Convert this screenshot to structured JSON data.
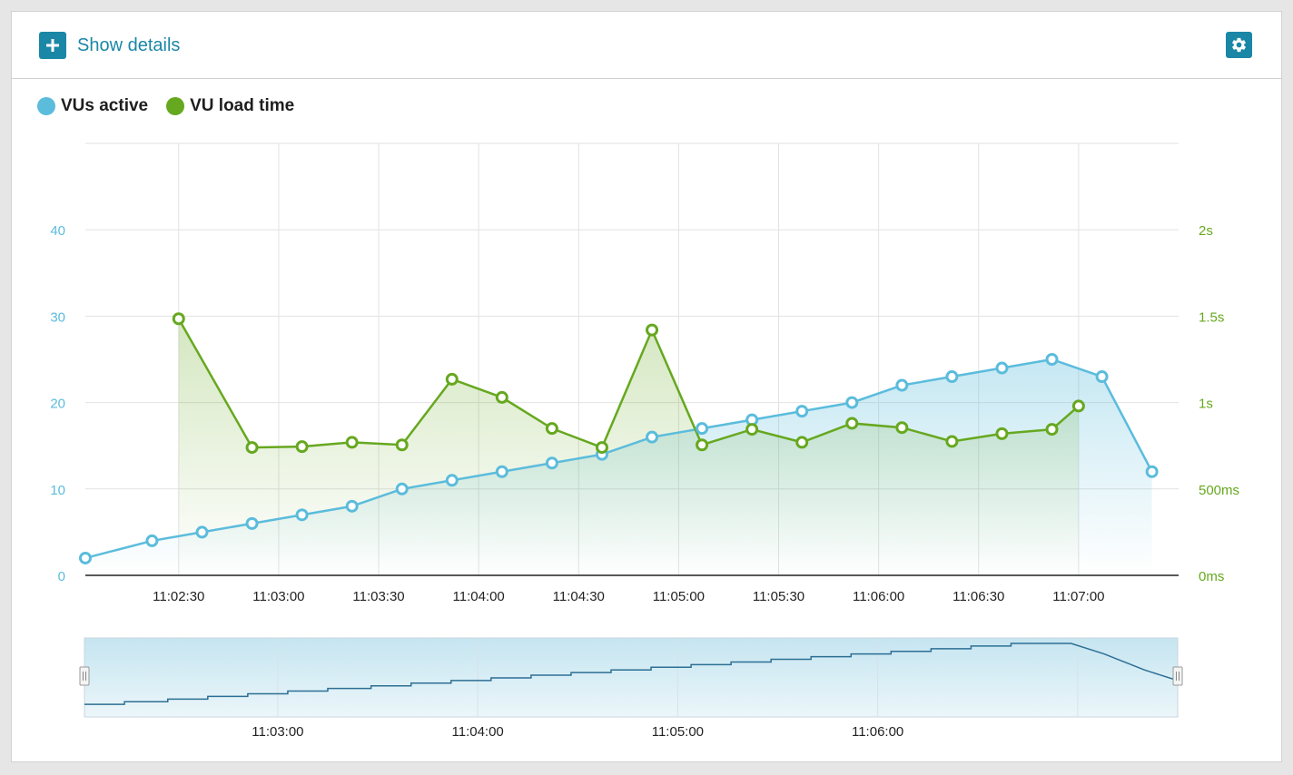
{
  "header": {
    "show_details_label": "Show details",
    "plus_icon": "plus-icon",
    "settings_icon": "gear-icon"
  },
  "colors": {
    "accent": "#1a87a6",
    "vus": "#5bbcdc",
    "load": "#66a81f",
    "grid": "#e2e2e2"
  },
  "legend": [
    {
      "label": "VUs active",
      "color": "#5bbcdc"
    },
    {
      "label": "VU load time",
      "color": "#66a81f"
    }
  ],
  "chart_data": {
    "type": "line",
    "title": "",
    "xlabel": "",
    "x_ticks": [
      "11:02:30",
      "11:03:00",
      "11:03:30",
      "11:04:00",
      "11:04:30",
      "11:05:00",
      "11:05:30",
      "11:06:00",
      "11:06:30",
      "11:07:00"
    ],
    "x_tick_seconds": [
      30,
      60,
      90,
      120,
      150,
      180,
      210,
      240,
      270,
      300
    ],
    "x_range_seconds": [
      2,
      330
    ],
    "y_left": {
      "label": "VUs active",
      "ylim": [
        0,
        50
      ],
      "ticks": [
        "0",
        "10",
        "20",
        "30",
        "40"
      ],
      "tick_values": [
        0,
        10,
        20,
        30,
        40
      ]
    },
    "y_right": {
      "label": "VU load time",
      "ylim_ms": [
        0,
        2500
      ],
      "ticks": [
        "0ms",
        "500ms",
        "1s",
        "1.5s",
        "2s"
      ],
      "tick_values": [
        0,
        500,
        1000,
        1500,
        2000
      ]
    },
    "series": [
      {
        "name": "VUs active",
        "axis": "left",
        "x": [
          2,
          22,
          37,
          52,
          67,
          82,
          97,
          112,
          127,
          142,
          157,
          172,
          187,
          202,
          217,
          232,
          247,
          262,
          277,
          292,
          307,
          322
        ],
        "values": [
          2,
          4,
          5,
          6,
          7,
          8,
          10,
          11,
          12,
          13,
          14,
          16,
          17,
          18,
          19,
          20,
          22,
          23,
          24,
          25,
          23,
          12
        ]
      },
      {
        "name": "VU load time",
        "axis": "right",
        "x": [
          30,
          52,
          67,
          82,
          97,
          112,
          127,
          142,
          157,
          172,
          187,
          202,
          217,
          232,
          247,
          262,
          277,
          292,
          300
        ],
        "values": [
          1485,
          740,
          745,
          770,
          755,
          1135,
          1030,
          850,
          740,
          1420,
          755,
          845,
          770,
          880,
          855,
          775,
          820,
          845,
          980
        ]
      }
    ],
    "navigator": {
      "x_ticks": [
        "11:03:00",
        "11:04:00",
        "11:05:00",
        "11:06:00"
      ],
      "x_tick_seconds": [
        60,
        120,
        180,
        240
      ],
      "ylim": [
        0,
        25
      ],
      "steps": [
        [
          2,
          2
        ],
        [
          14,
          3
        ],
        [
          27,
          4
        ],
        [
          39,
          5
        ],
        [
          51,
          6
        ],
        [
          63,
          7
        ],
        [
          75,
          8
        ],
        [
          88,
          9
        ],
        [
          100,
          10
        ],
        [
          112,
          11
        ],
        [
          124,
          12
        ],
        [
          136,
          13
        ],
        [
          148,
          14
        ],
        [
          160,
          15
        ],
        [
          172,
          16
        ],
        [
          184,
          17
        ],
        [
          196,
          18
        ],
        [
          208,
          19
        ],
        [
          220,
          20
        ],
        [
          232,
          21
        ],
        [
          244,
          22
        ],
        [
          256,
          23
        ],
        [
          268,
          24
        ],
        [
          280,
          25
        ],
        [
          298,
          25
        ],
        [
          303,
          23
        ],
        [
          308,
          21
        ],
        [
          312,
          19
        ],
        [
          316,
          17
        ],
        [
          320,
          15
        ],
        [
          325,
          13
        ],
        [
          330,
          11
        ]
      ]
    }
  }
}
